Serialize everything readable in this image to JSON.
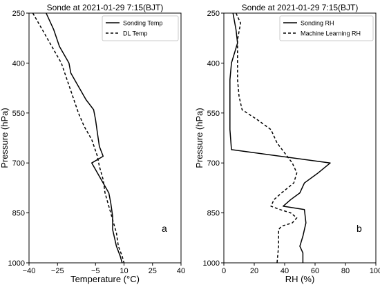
{
  "chart_data": [
    {
      "type": "line",
      "panel_label": "a",
      "title": "Sonde at 2021-01-29 7:15(BJT)",
      "xlabel": "Temperature (°C)",
      "ylabel": "Pressure (hPa)",
      "xlim": [
        -40,
        40
      ],
      "ylim": [
        1000,
        250
      ],
      "x_inverted": false,
      "y_inverted": true,
      "xticks": [
        -40,
        -25,
        -5,
        10,
        25,
        40
      ],
      "xtick_labels": [
        "−40",
        "−25",
        "−5",
        "10",
        "25",
        "40"
      ],
      "yticks": [
        250,
        400,
        550,
        700,
        850,
        1000
      ],
      "ytick_labels": [
        "250",
        "400",
        "550",
        "700",
        "850",
        "1000"
      ],
      "legend": "top-right",
      "grid": false,
      "series": [
        {
          "name": "Sonding Temp",
          "style": "solid",
          "points": [
            [
              -31,
              250
            ],
            [
              -27,
              300
            ],
            [
              -24,
              350
            ],
            [
              -19,
              400
            ],
            [
              -18,
              430
            ],
            [
              -14,
              470
            ],
            [
              -10,
              510
            ],
            [
              -6,
              540
            ],
            [
              -5,
              570
            ],
            [
              -4,
              610
            ],
            [
              -3,
              650
            ],
            [
              -1,
              680
            ],
            [
              -7,
              700
            ],
            [
              -5,
              720
            ],
            [
              -1,
              760
            ],
            [
              2,
              790
            ],
            [
              3,
              820
            ],
            [
              4,
              860
            ],
            [
              4,
              900
            ],
            [
              6,
              950
            ],
            [
              8,
              980
            ],
            [
              9,
              1000
            ]
          ]
        },
        {
          "name": "DL Temp",
          "style": "dashed",
          "points": [
            [
              -38,
              250
            ],
            [
              -33,
              300
            ],
            [
              -28,
              350
            ],
            [
              -23,
              400
            ],
            [
              -20,
              450
            ],
            [
              -17,
              500
            ],
            [
              -14,
              550
            ],
            [
              -11,
              590
            ],
            [
              -7,
              630
            ],
            [
              -4,
              680
            ],
            [
              -3,
              710
            ],
            [
              -1,
              750
            ],
            [
              0,
              790
            ],
            [
              2,
              830
            ],
            [
              4,
              870
            ],
            [
              6,
              910
            ],
            [
              7,
              950
            ],
            [
              9,
              980
            ],
            [
              10,
              1000
            ]
          ]
        }
      ]
    },
    {
      "type": "line",
      "panel_label": "b",
      "title": "Sonde at 2021-01-29 7:15(BJT)",
      "xlabel": "RH (%)",
      "ylabel": "Pressure (hPa)",
      "xlim": [
        0,
        100
      ],
      "ylim": [
        1000,
        250
      ],
      "y_inverted": true,
      "xticks": [
        0,
        20,
        40,
        60,
        80,
        100
      ],
      "xtick_labels": [
        "0",
        "20",
        "40",
        "60",
        "80",
        "100"
      ],
      "yticks": [
        250,
        400,
        550,
        700,
        850,
        1000
      ],
      "ytick_labels": [
        "250",
        "400",
        "550",
        "700",
        "850",
        "1000"
      ],
      "legend": "top-right",
      "grid": false,
      "series": [
        {
          "name": "Sonding RH",
          "style": "solid",
          "points": [
            [
              6,
              250
            ],
            [
              8,
              300
            ],
            [
              9,
              340
            ],
            [
              7,
              370
            ],
            [
              5,
              400
            ],
            [
              4,
              450
            ],
            [
              4,
              520
            ],
            [
              4,
              600
            ],
            [
              5,
              660
            ],
            [
              70,
              700
            ],
            [
              62,
              730
            ],
            [
              53,
              760
            ],
            [
              50,
              790
            ],
            [
              44,
              810
            ],
            [
              39,
              830
            ],
            [
              53,
              840
            ],
            [
              54,
              880
            ],
            [
              52,
              920
            ],
            [
              50,
              950
            ],
            [
              52,
              970
            ],
            [
              52,
              1000
            ]
          ]
        },
        {
          "name": "Machine Learning RH",
          "style": "dashed",
          "points": [
            [
              8,
              250
            ],
            [
              11,
              280
            ],
            [
              9,
              330
            ],
            [
              9,
              400
            ],
            [
              9,
              450
            ],
            [
              10,
              500
            ],
            [
              12,
              540
            ],
            [
              22,
              570
            ],
            [
              31,
              600
            ],
            [
              35,
              640
            ],
            [
              40,
              670
            ],
            [
              45,
              700
            ],
            [
              48,
              730
            ],
            [
              46,
              760
            ],
            [
              38,
              790
            ],
            [
              33,
              810
            ],
            [
              31,
              830
            ],
            [
              37,
              840
            ],
            [
              44,
              850
            ],
            [
              48,
              865
            ],
            [
              45,
              880
            ],
            [
              38,
              890
            ],
            [
              36,
              900
            ],
            [
              36,
              950
            ],
            [
              35,
              1000
            ]
          ]
        }
      ]
    }
  ]
}
